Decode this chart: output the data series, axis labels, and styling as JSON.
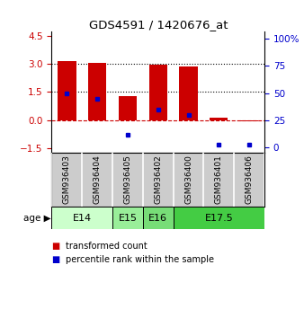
{
  "title": "GDS4591 / 1420676_at",
  "samples": [
    "GSM936403",
    "GSM936404",
    "GSM936405",
    "GSM936402",
    "GSM936400",
    "GSM936401",
    "GSM936406"
  ],
  "transformed_counts": [
    3.15,
    3.05,
    1.3,
    2.95,
    2.85,
    0.15,
    -0.05
  ],
  "percentile_ranks": [
    50,
    45,
    12,
    35,
    30,
    3,
    3
  ],
  "bar_color": "#cc0000",
  "percentile_color": "#0000cc",
  "ylim_left": [
    -1.7,
    4.7
  ],
  "ylim_right": [
    -4.25,
    106.25
  ],
  "yticks_left": [
    -1.5,
    0.0,
    1.5,
    3.0,
    4.5
  ],
  "yticks_right": [
    0,
    25,
    50,
    75,
    100
  ],
  "hlines": [
    0.0,
    1.5,
    3.0
  ],
  "hline_styles": [
    "dashed",
    "dotted",
    "dotted"
  ],
  "hline_colors": [
    "#cc0000",
    "#000000",
    "#000000"
  ],
  "age_groups": [
    {
      "label": "E14",
      "samples": [
        0,
        1
      ],
      "color": "#ccffcc"
    },
    {
      "label": "E15",
      "samples": [
        2
      ],
      "color": "#99ee99"
    },
    {
      "label": "E16",
      "samples": [
        3
      ],
      "color": "#77dd77"
    },
    {
      "label": "E17.5",
      "samples": [
        4,
        5,
        6
      ],
      "color": "#44cc44"
    }
  ],
  "age_label": "age",
  "legend_items": [
    {
      "label": "transformed count",
      "color": "#cc0000"
    },
    {
      "label": "percentile rank within the sample",
      "color": "#0000cc"
    }
  ],
  "bar_width": 0.6,
  "sample_box_color": "#cccccc",
  "fig_width": 3.38,
  "fig_height": 3.54,
  "dpi": 100
}
